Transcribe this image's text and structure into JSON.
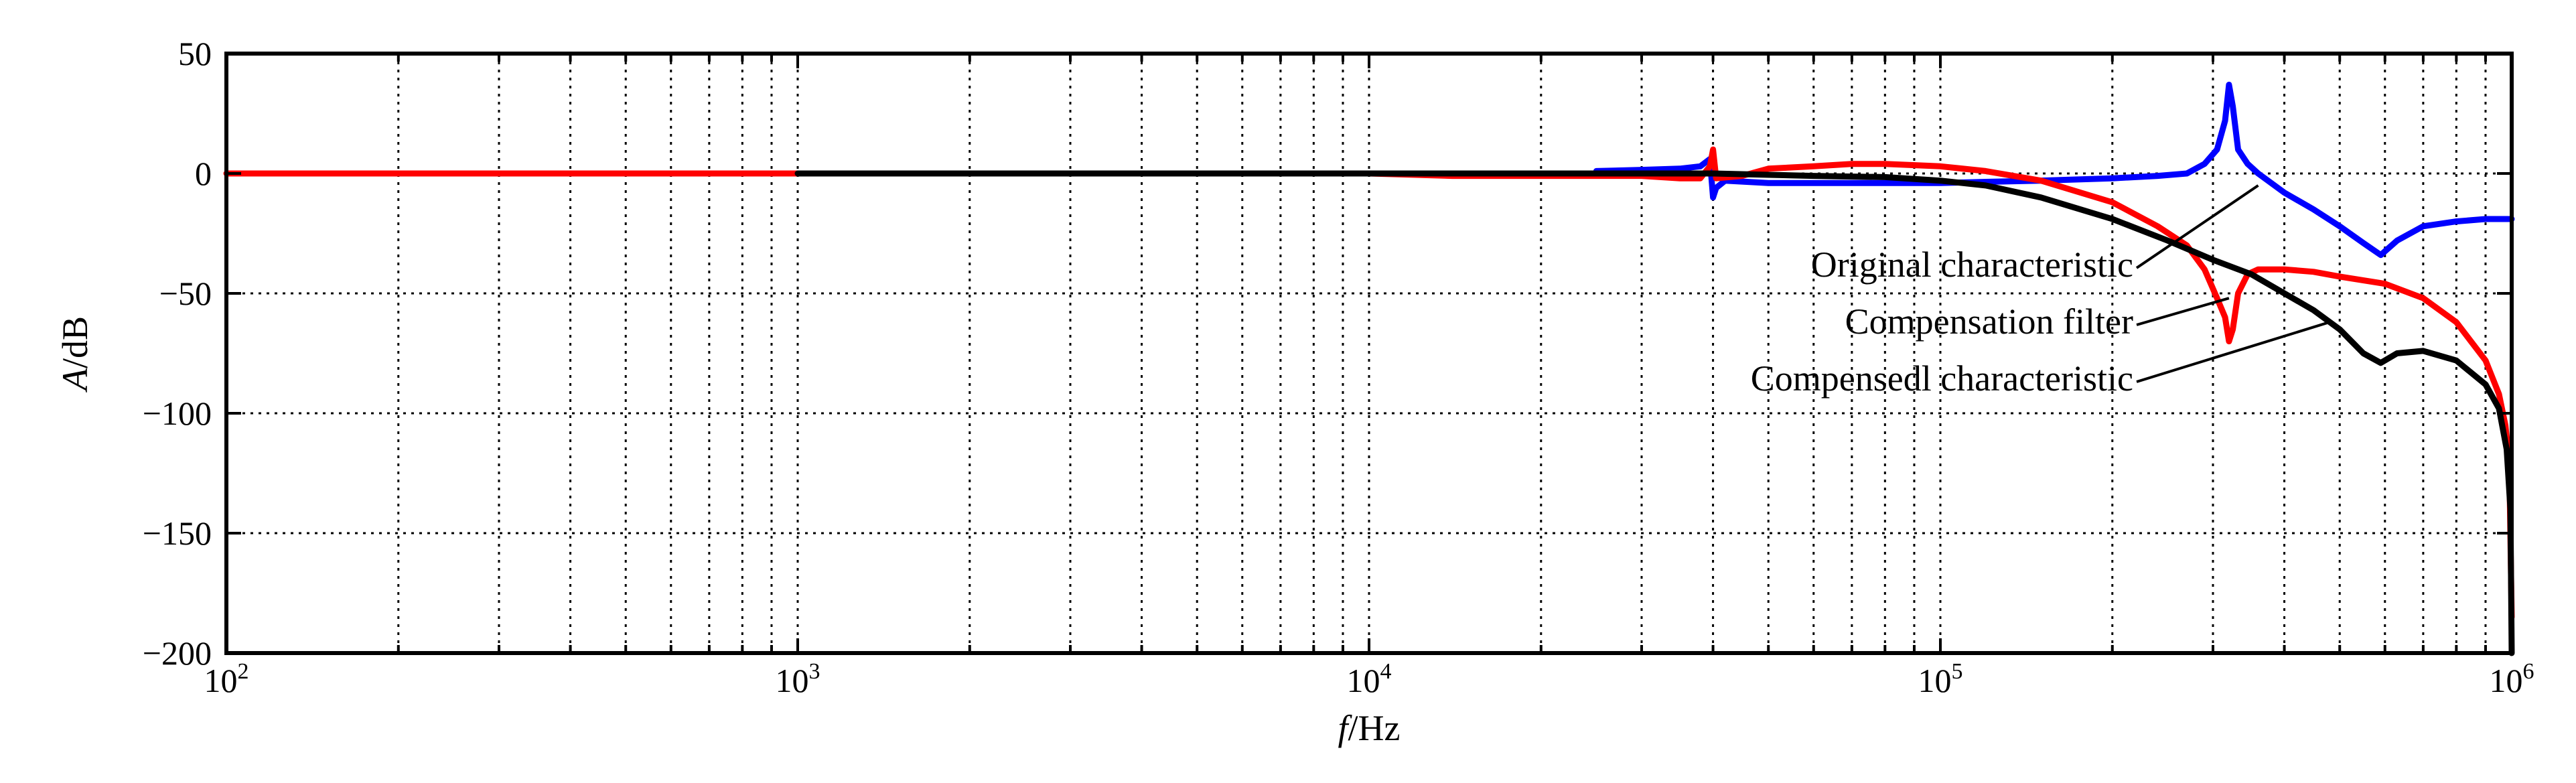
{
  "chart_data": {
    "type": "line",
    "xscale": "log",
    "xlim": [
      100,
      1000000
    ],
    "ylim": [
      -200,
      50
    ],
    "xlabel_italic": "f",
    "xlabel_unit": "/Hz",
    "ylabel_italic": "A",
    "ylabel_unit": "/dB",
    "grid": true,
    "x_ticks": [
      {
        "value": 100,
        "base": "10",
        "exp": "2"
      },
      {
        "value": 1000,
        "base": "10",
        "exp": "3"
      },
      {
        "value": 10000,
        "base": "10",
        "exp": "4"
      },
      {
        "value": 100000,
        "base": "10",
        "exp": "5"
      },
      {
        "value": 1000000,
        "base": "10",
        "exp": "6"
      }
    ],
    "y_ticks": [
      {
        "value": 50,
        "label": "50"
      },
      {
        "value": 0,
        "label": "0"
      },
      {
        "value": -50,
        "label": "−50"
      },
      {
        "value": -100,
        "label": "−100"
      },
      {
        "value": -150,
        "label": "−150"
      },
      {
        "value": -200,
        "label": "−200"
      }
    ],
    "series": [
      {
        "key": "original",
        "color": "#0000ff",
        "points": [
          [
            25000,
            1
          ],
          [
            30000,
            1.5
          ],
          [
            35000,
            2
          ],
          [
            38000,
            3
          ],
          [
            39500,
            6
          ],
          [
            40000,
            -10
          ],
          [
            40500,
            -6
          ],
          [
            42000,
            -3
          ],
          [
            50000,
            -4
          ],
          [
            60000,
            -4
          ],
          [
            70000,
            -4
          ],
          [
            80000,
            -4
          ],
          [
            100000,
            -4
          ],
          [
            120000,
            -3.5
          ],
          [
            150000,
            -3
          ],
          [
            200000,
            -2
          ],
          [
            240000,
            -1
          ],
          [
            270000,
            0
          ],
          [
            290000,
            4
          ],
          [
            305000,
            10
          ],
          [
            315000,
            22
          ],
          [
            320000,
            37
          ],
          [
            325000,
            28
          ],
          [
            332000,
            10
          ],
          [
            345000,
            4
          ],
          [
            360000,
            0
          ],
          [
            400000,
            -8
          ],
          [
            450000,
            -15
          ],
          [
            500000,
            -22
          ],
          [
            550000,
            -29
          ],
          [
            590000,
            -34
          ],
          [
            630000,
            -28
          ],
          [
            700000,
            -22
          ],
          [
            800000,
            -20
          ],
          [
            900000,
            -19
          ],
          [
            1000000,
            -19
          ]
        ]
      },
      {
        "key": "filter",
        "color": "#ff0000",
        "points": [
          [
            100,
            0
          ],
          [
            1000,
            0
          ],
          [
            10000,
            0
          ],
          [
            14000,
            -1
          ],
          [
            20000,
            -1
          ],
          [
            25000,
            -1
          ],
          [
            30000,
            -1
          ],
          [
            35000,
            -2
          ],
          [
            38000,
            -2
          ],
          [
            39500,
            3
          ],
          [
            40000,
            10
          ],
          [
            40500,
            -2
          ],
          [
            45000,
            -1
          ],
          [
            50000,
            2
          ],
          [
            60000,
            3
          ],
          [
            70000,
            4
          ],
          [
            80000,
            4
          ],
          [
            100000,
            3
          ],
          [
            120000,
            1
          ],
          [
            150000,
            -3
          ],
          [
            200000,
            -12
          ],
          [
            240000,
            -22
          ],
          [
            270000,
            -30
          ],
          [
            290000,
            -40
          ],
          [
            305000,
            -52
          ],
          [
            315000,
            -60
          ],
          [
            320000,
            -70
          ],
          [
            325000,
            -65
          ],
          [
            332000,
            -50
          ],
          [
            345000,
            -42
          ],
          [
            360000,
            -40
          ],
          [
            400000,
            -40
          ],
          [
            450000,
            -41
          ],
          [
            500000,
            -43
          ],
          [
            600000,
            -46
          ],
          [
            700000,
            -52
          ],
          [
            800000,
            -62
          ],
          [
            900000,
            -78
          ],
          [
            950000,
            -92
          ],
          [
            975000,
            -105
          ],
          [
            990000,
            -120
          ],
          [
            1000000,
            -185
          ]
        ]
      },
      {
        "key": "compensated",
        "color": "#000000",
        "points": [
          [
            1000,
            0
          ],
          [
            10000,
            0
          ],
          [
            20000,
            0
          ],
          [
            40000,
            0
          ],
          [
            60000,
            -1
          ],
          [
            80000,
            -1.5
          ],
          [
            100000,
            -3
          ],
          [
            120000,
            -5
          ],
          [
            150000,
            -10
          ],
          [
            200000,
            -19
          ],
          [
            250000,
            -28
          ],
          [
            300000,
            -36
          ],
          [
            350000,
            -42
          ],
          [
            400000,
            -50
          ],
          [
            450000,
            -57
          ],
          [
            500000,
            -65
          ],
          [
            550000,
            -75
          ],
          [
            590000,
            -79
          ],
          [
            630000,
            -75
          ],
          [
            700000,
            -74
          ],
          [
            800000,
            -78
          ],
          [
            900000,
            -88
          ],
          [
            950000,
            -98
          ],
          [
            980000,
            -115
          ],
          [
            995000,
            -140
          ],
          [
            1000000,
            -200
          ]
        ]
      }
    ],
    "annotations": [
      {
        "key": "original",
        "text": "Original characteristic",
        "target": [
          360000,
          -5
        ]
      },
      {
        "key": "filter",
        "text": "Compensation filter",
        "target": [
          320000,
          -52
        ]
      },
      {
        "key": "compensated",
        "text": "Compensedl characteristic",
        "target": [
          480000,
          -62
        ]
      }
    ]
  }
}
